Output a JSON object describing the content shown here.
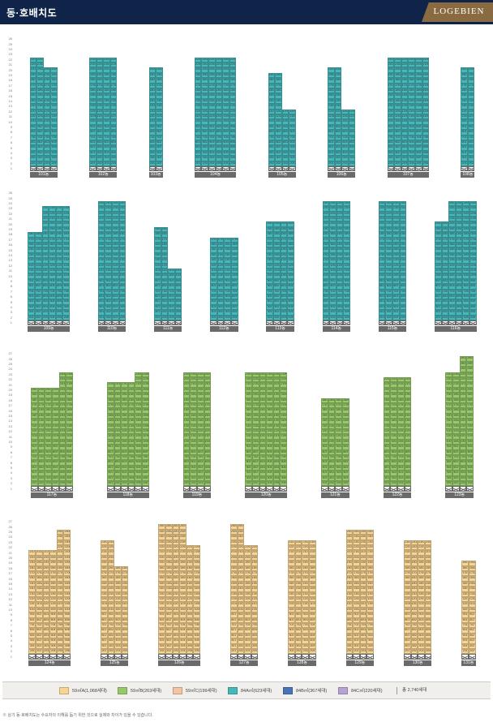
{
  "header": {
    "title": "동·호배치도",
    "brand": "LOGEBIEN"
  },
  "colors": {
    "A": "#f7d494",
    "B": "#96c96a",
    "C": "#f3c3a3",
    "D": "#46b7ba",
    "E": "#4a74b6",
    "F": "#b7a3d2",
    "header_bg": "#0f2448",
    "brand_bg": "#8a6a40"
  },
  "rows": [
    {
      "floors": 26,
      "buildings": [
        {
          "name": "101동",
          "lines": 4,
          "pilotis": 2,
          "segments": [
            [
              2,
              20,
              "D",
              "D",
              "D",
              "D"
            ],
            [
              21,
              22,
              "D",
              "D",
              "",
              ""
            ]
          ]
        },
        {
          "name": "102동",
          "lines": 4,
          "pilotis": 2,
          "segments": [
            [
              2,
              20,
              "D",
              "D",
              "D",
              "D"
            ],
            [
              21,
              22,
              "D",
              "D",
              "D",
              "D"
            ]
          ]
        },
        {
          "name": "103동",
          "lines": 2,
          "pilotis": 1,
          "segments": [
            [
              2,
              18,
              "D",
              "D"
            ],
            [
              19,
              20,
              "D",
              "D"
            ]
          ]
        },
        {
          "name": "104동",
          "lines": 6,
          "pilotis": 2,
          "segments": [
            [
              2,
              20,
              "D",
              "D",
              "D",
              "D",
              "D",
              "D"
            ],
            [
              21,
              22,
              "D",
              "D",
              "D",
              "D",
              "D",
              "D"
            ]
          ]
        },
        {
          "name": "105동",
          "lines": 4,
          "pilotis": 2,
          "segments": [
            [
              2,
              12,
              "D",
              "D",
              "D",
              "D"
            ],
            [
              13,
              19,
              "D",
              "D",
              "",
              ""
            ]
          ]
        },
        {
          "name": "106동",
          "lines": 4,
          "pilotis": 2,
          "segments": [
            [
              2,
              12,
              "D",
              "D",
              "D",
              "D"
            ],
            [
              13,
              20,
              "D",
              "D",
              "",
              ""
            ]
          ]
        },
        {
          "name": "107동",
          "lines": 6,
          "pilotis": 2,
          "segments": [
            [
              2,
              20,
              "D",
              "D",
              "D",
              "D",
              "D",
              "D"
            ],
            [
              21,
              22,
              "D",
              "D",
              "D",
              "D",
              "D",
              "D"
            ]
          ]
        },
        {
          "name": "108동",
          "lines": 2,
          "pilotis": 1,
          "segments": [
            [
              2,
              19,
              "D",
              "D"
            ],
            [
              20,
              20,
              "D",
              "D"
            ]
          ]
        }
      ]
    },
    {
      "floors": 26,
      "buildings": [
        {
          "name": "109동",
          "lines": 6,
          "pilotis": 2,
          "segments": [
            [
              2,
              18,
              "D",
              "D",
              "D",
              "D",
              "D",
              "D"
            ],
            [
              19,
              23,
              "",
              "",
              "D",
              "D",
              "D",
              "D"
            ]
          ]
        },
        {
          "name": "110동",
          "lines": 4,
          "pilotis": 2,
          "segments": [
            [
              2,
              24,
              "D",
              "D",
              "D",
              "D"
            ]
          ]
        },
        {
          "name": "111동",
          "lines": 4,
          "pilotis": 2,
          "segments": [
            [
              2,
              11,
              "D",
              "D",
              "D",
              "D"
            ],
            [
              12,
              19,
              "D",
              "D",
              "",
              ""
            ]
          ]
        },
        {
          "name": "112동",
          "lines": 4,
          "pilotis": 2,
          "segments": [
            [
              2,
              17,
              "D",
              "D",
              "D",
              "D"
            ]
          ]
        },
        {
          "name": "113동",
          "lines": 4,
          "pilotis": 2,
          "segments": [
            [
              2,
              20,
              "D",
              "D",
              "D",
              "D"
            ]
          ]
        },
        {
          "name": "114동",
          "lines": 4,
          "pilotis": 2,
          "segments": [
            [
              2,
              24,
              "D",
              "D",
              "D",
              "D"
            ]
          ]
        },
        {
          "name": "115동",
          "lines": 4,
          "pilotis": 2,
          "segments": [
            [
              2,
              24,
              "D",
              "D",
              "D",
              "D"
            ]
          ]
        },
        {
          "name": "116동",
          "lines": 6,
          "pilotis": 2,
          "segments": [
            [
              2,
              20,
              "D",
              "D",
              "D",
              "D",
              "D",
              "D"
            ],
            [
              21,
              24,
              "",
              "",
              "D",
              "D",
              "D",
              "D"
            ]
          ]
        }
      ]
    },
    {
      "floors": 27,
      "buildings": [
        {
          "name": "117동",
          "lines": 6,
          "pilotis": 2,
          "segments": [
            [
              2,
              20,
              "B",
              "B",
              "B",
              "B",
              "B",
              "B"
            ],
            [
              21,
              23,
              "",
              "",
              "",
              "",
              "B",
              "B"
            ]
          ]
        },
        {
          "name": "118동",
          "lines": 6,
          "pilotis": 2,
          "segments": [
            [
              2,
              21,
              "B",
              "B",
              "B",
              "B",
              "B",
              "B"
            ],
            [
              22,
              23,
              "",
              "",
              "",
              "",
              "B",
              "B"
            ]
          ]
        },
        {
          "name": "119동",
          "lines": 4,
          "pilotis": 2,
          "segments": [
            [
              2,
              23,
              "B",
              "B",
              "B",
              "B"
            ]
          ]
        },
        {
          "name": "120동",
          "lines": 6,
          "pilotis": 2,
          "segments": [
            [
              2,
              23,
              "B",
              "B",
              "B",
              "B",
              "B",
              "B"
            ]
          ]
        },
        {
          "name": "121동",
          "lines": 4,
          "pilotis": 2,
          "segments": [
            [
              2,
              18,
              "B",
              "B",
              "B",
              "B"
            ]
          ]
        },
        {
          "name": "122동",
          "lines": 4,
          "pilotis": 2,
          "segments": [
            [
              2,
              22,
              "B",
              "B",
              "B",
              "B"
            ]
          ]
        },
        {
          "name": "123동",
          "lines": 4,
          "pilotis": 2,
          "segments": [
            [
              2,
              23,
              "B",
              "B",
              "B",
              "B"
            ],
            [
              24,
              26,
              "",
              "",
              "B",
              "B"
            ]
          ]
        }
      ]
    },
    {
      "floors": 27,
      "buildings": [
        {
          "name": "124동",
          "lines": 6,
          "pilotis": 2,
          "segments": [
            [
              2,
              21,
              "A",
              "A",
              "A",
              "A",
              "A",
              "A"
            ],
            [
              22,
              25,
              "",
              "",
              "",
              "",
              "A",
              "A"
            ]
          ]
        },
        {
          "name": "125동",
          "lines": 4,
          "pilotis": 2,
          "segments": [
            [
              2,
              18,
              "A",
              "A",
              "A",
              "A"
            ],
            [
              19,
              23,
              "A",
              "A",
              "",
              ""
            ]
          ]
        },
        {
          "name": "126동",
          "lines": 6,
          "pilotis": 2,
          "segments": [
            [
              2,
              22,
              "A",
              "A",
              "A",
              "A",
              "A",
              "A"
            ],
            [
              23,
              26,
              "A",
              "A",
              "A",
              "A",
              "",
              ""
            ]
          ]
        },
        {
          "name": "127동",
          "lines": 4,
          "pilotis": 2,
          "segments": [
            [
              2,
              22,
              "A",
              "A",
              "A",
              "A"
            ],
            [
              23,
              26,
              "A",
              "A",
              "",
              ""
            ]
          ]
        },
        {
          "name": "128동",
          "lines": 4,
          "pilotis": 2,
          "segments": [
            [
              2,
              23,
              "A",
              "A",
              "A",
              "A"
            ]
          ]
        },
        {
          "name": "129동",
          "lines": 4,
          "pilotis": 2,
          "segments": [
            [
              2,
              25,
              "A",
              "A",
              "A",
              "A"
            ]
          ]
        },
        {
          "name": "130동",
          "lines": 4,
          "pilotis": 2,
          "segments": [
            [
              2,
              23,
              "A",
              "A",
              "A",
              "A"
            ]
          ]
        },
        {
          "name": "131동",
          "lines": 2,
          "pilotis": 1,
          "segments": [
            [
              2,
              19,
              "A",
              "A"
            ]
          ]
        }
      ]
    }
  ],
  "legend": {
    "items": [
      {
        "key": "A",
        "label": "59㎡A(1,068세대)"
      },
      {
        "key": "B",
        "label": "59㎡B(263세대)"
      },
      {
        "key": "C",
        "label": "59㎡C(199세대)"
      },
      {
        "key": "D",
        "label": "84A㎡(623세대)"
      },
      {
        "key": "E",
        "label": "84B㎡(367세대)"
      },
      {
        "key": "F",
        "label": "84C㎡(220세대)"
      }
    ],
    "total": "총 2,740세대"
  },
  "note": "※ 상기 동·호배치도는 수요자의 이해를 돕기 위한 것으로 실제와 차이가 있을 수 있습니다."
}
